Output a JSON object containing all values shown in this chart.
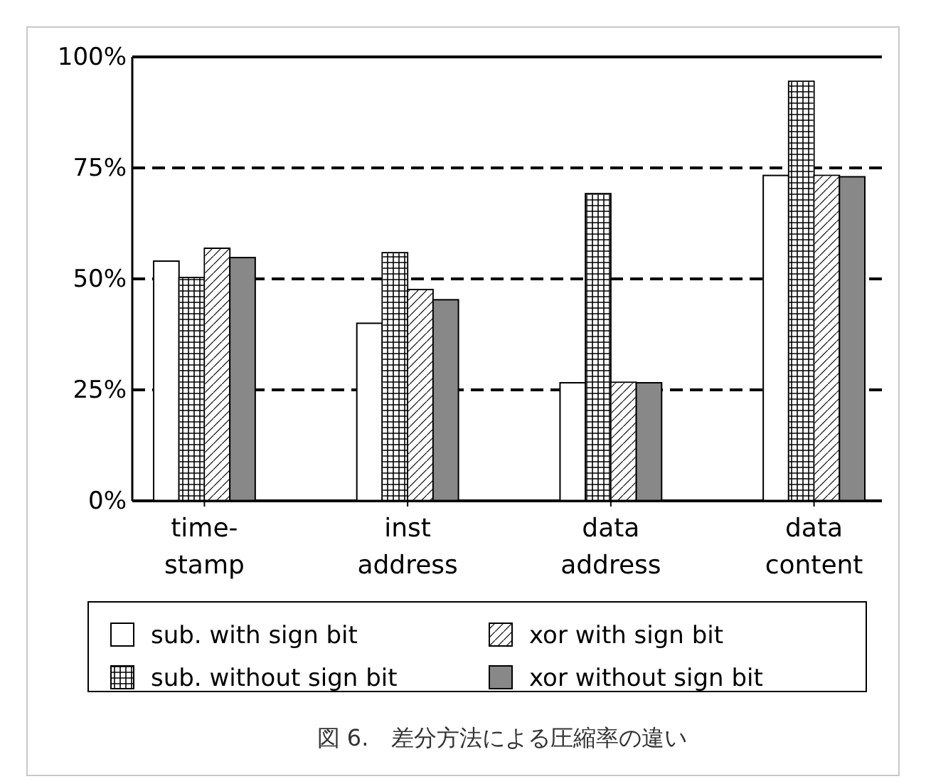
{
  "chart_data": {
    "type": "bar",
    "title": "図 6.　差分方法による圧縮率の違い",
    "categories": [
      "time-\nstamp",
      "inst\naddress",
      "data\naddress",
      "data\ncontent"
    ],
    "series": [
      {
        "name": "sub. with sign bit",
        "color": "#ffffff",
        "values": [
          54,
          40,
          26.6,
          73.3
        ]
      },
      {
        "name": "sub. without sign bit",
        "color": "#ffffff",
        "values": [
          50.3,
          55.9,
          69.2,
          94.5
        ]
      },
      {
        "name": "xor with sign bit",
        "color": "#ffffff",
        "values": [
          56.9,
          47.6,
          26.7,
          73.3
        ]
      },
      {
        "name": "xor without sign bit",
        "color": "#888888",
        "values": [
          54.8,
          45.3,
          26.6,
          73
        ]
      }
    ],
    "ylim": [
      0,
      100
    ],
    "yticks": [
      {
        "value": 0,
        "label": "0%"
      },
      {
        "value": 25,
        "label": "25%"
      },
      {
        "value": 50,
        "label": "50%"
      },
      {
        "value": 75,
        "label": "75%"
      },
      {
        "value": 100,
        "label": "100%"
      }
    ],
    "grid": "y",
    "legend": "bottom"
  }
}
